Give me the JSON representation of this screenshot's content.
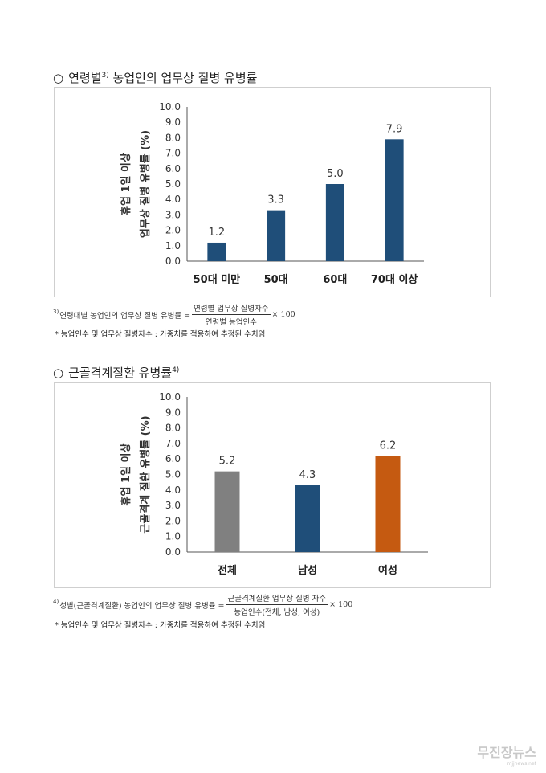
{
  "section1": {
    "title": "연령별",
    "title_sup": "3)",
    "title_rest": " 농업인의 업무상 질병 유병률",
    "formula_sup": "3)",
    "formula_lhs": "연령대별 농업인의 업무상 질병 유병률 =",
    "formula_num": "연령별 업무상 질병자수",
    "formula_den": "연령별 농업인수",
    "formula_mult": "× 100",
    "note": "* 농업인수 및 업무상 질병자수 : 가중치를 적용하여 추정된 수치임"
  },
  "section2": {
    "title": "근골격계질환 유병률",
    "title_sup": "4)",
    "formula_sup": "4)",
    "formula_lhs": "성별(근골격계질환) 농업인의 업무상 질병 유병률 =",
    "formula_num": "근골격계질환 업무상 질병 자수",
    "formula_den": "농업인수(전체, 남성, 여성)",
    "formula_mult": "× 100",
    "note": "* 농업인수 및 업무상 질병자수 : 가중치를 적용하여 추정된 수치임"
  },
  "watermark": {
    "text": "무진장뉴스",
    "sub": "mjjnews.net"
  },
  "chart_data": [
    {
      "type": "bar",
      "categories": [
        "50대 미만",
        "50대",
        "60대",
        "70대 이상"
      ],
      "values": [
        1.2,
        3.3,
        5.0,
        7.9
      ],
      "value_labels": [
        "1.2",
        "3.3",
        "5.0",
        "7.9"
      ],
      "colors": [
        "#1f4e79",
        "#1f4e79",
        "#1f4e79",
        "#1f4e79"
      ],
      "ylabel_line1": "휴업 1일 이상",
      "ylabel_line2": "업무상 질병 유병률 (%)",
      "ylim": [
        0,
        10
      ],
      "ytick_labels": [
        "0.0",
        "1.0",
        "2.0",
        "3.0",
        "4.0",
        "5.0",
        "6.0",
        "7.0",
        "8.0",
        "9.0",
        "10.0"
      ],
      "grid": false
    },
    {
      "type": "bar",
      "categories": [
        "전체",
        "남성",
        "여성"
      ],
      "values": [
        5.2,
        4.3,
        6.2
      ],
      "value_labels": [
        "5.2",
        "4.3",
        "6.2"
      ],
      "colors": [
        "#808080",
        "#1f4e79",
        "#c55a11"
      ],
      "ylabel_line1": "휴업 1일 이상",
      "ylabel_line2": "근골격계 질환 유병률 (%)",
      "ylim": [
        0,
        10
      ],
      "ytick_labels": [
        "0.0",
        "1.0",
        "2.0",
        "3.0",
        "4.0",
        "5.0",
        "6.0",
        "7.0",
        "8.0",
        "9.0",
        "10.0"
      ],
      "grid": false
    }
  ]
}
